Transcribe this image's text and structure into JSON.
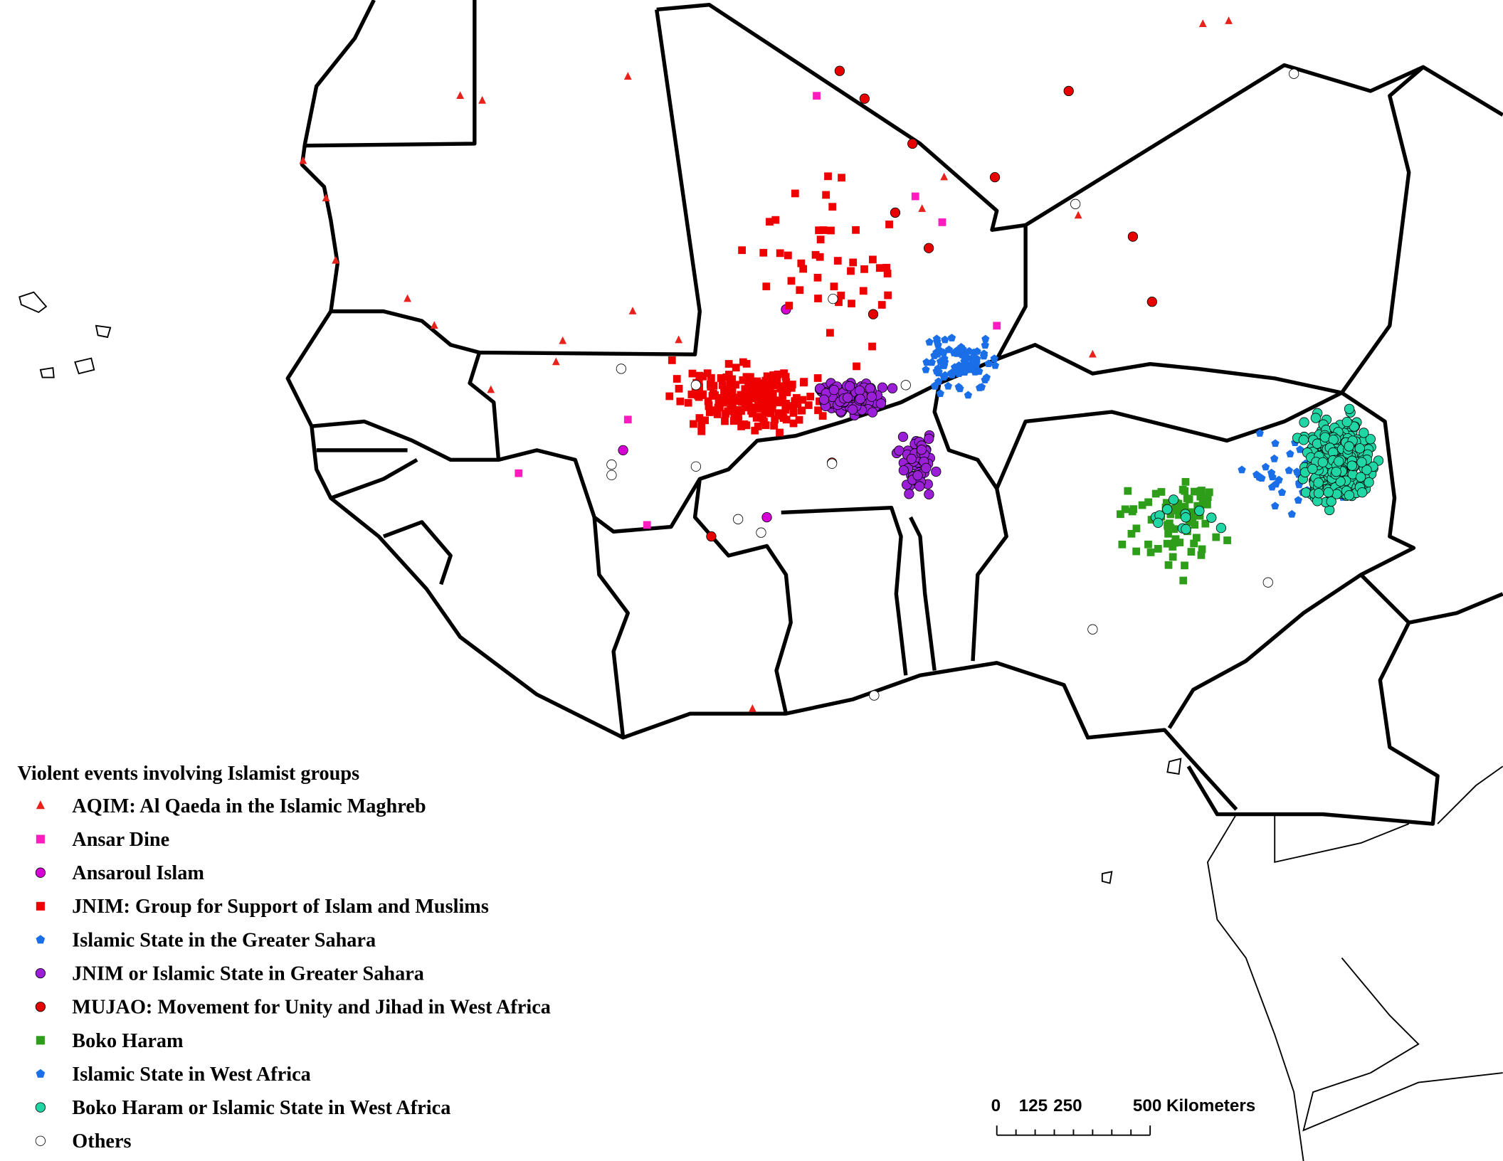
{
  "legend": {
    "title": "Violent events involving Islamist groups",
    "items": [
      {
        "name": "AQIM: Al Qaeda in the Islamic Maghreb",
        "color": "#e8211b",
        "marker": "triangle"
      },
      {
        "name": "Ansar Dine",
        "color": "#ff1cbf",
        "marker": "square"
      },
      {
        "name": "Ansaroul Islam",
        "color": "#d400d4",
        "marker": "circle"
      },
      {
        "name": "JNIM: Group for Support of Islam and Muslims",
        "color": "#ee0000",
        "marker": "square"
      },
      {
        "name": "Islamic State in the Greater Sahara",
        "color": "#1a6fe8",
        "marker": "pentagon"
      },
      {
        "name": "JNIM or Islamic State in Greater Sahara",
        "color": "#9b1fd6",
        "marker": "circle"
      },
      {
        "name": "MUJAO: Movement for Unity and Jihad in West Africa",
        "color": "#e60000",
        "marker": "circle"
      },
      {
        "name": "Boko Haram",
        "color": "#2e9e1a",
        "marker": "square"
      },
      {
        "name": "Islamic State in West Africa",
        "color": "#1a6fe8",
        "marker": "pentagon"
      },
      {
        "name": "Boko Haram or Islamic State in West Africa",
        "color": "#1fd6a4",
        "marker": "circle"
      },
      {
        "name": "Others",
        "color": "#ffffff",
        "marker": "circle"
      }
    ]
  },
  "scale_bar": {
    "labels": [
      "0",
      "125",
      "250",
      "500 Kilometers"
    ]
  }
}
